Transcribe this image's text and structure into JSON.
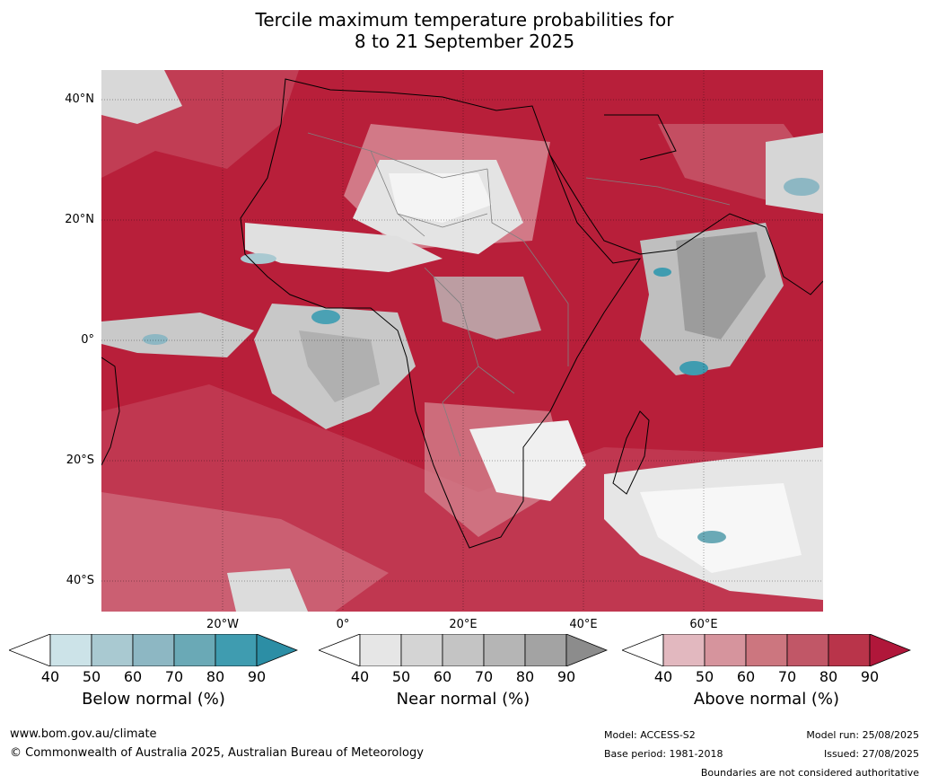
{
  "title": {
    "line1": "Tercile maximum temperature probabilities for",
    "line2": "8 to 21 September 2025"
  },
  "map": {
    "lat_labels": [
      "40°N",
      "20°N",
      "0°",
      "20°S",
      "40°S"
    ],
    "lon_labels": [
      "20°W",
      "0°",
      "20°E",
      "40°E",
      "60°E"
    ],
    "background_color": "#b81f3a"
  },
  "legends": [
    {
      "label": "Below normal (%)",
      "ticks": [
        "40",
        "50",
        "60",
        "70",
        "80",
        "90"
      ],
      "colors": [
        "#ffffff",
        "#cce3e8",
        "#a9c9d1",
        "#8db7c3",
        "#6aa9b6",
        "#3f9cb0",
        "#2c8ea5"
      ]
    },
    {
      "label": "Near normal (%)",
      "ticks": [
        "40",
        "50",
        "60",
        "70",
        "80",
        "90"
      ],
      "colors": [
        "#ffffff",
        "#e6e6e6",
        "#d4d4d4",
        "#c4c4c4",
        "#b5b5b5",
        "#a3a3a3",
        "#8c8c8c"
      ]
    },
    {
      "label": "Above normal (%)",
      "ticks": [
        "40",
        "50",
        "60",
        "70",
        "80",
        "90"
      ],
      "colors": [
        "#ffffff",
        "#e2b8bf",
        "#d6949d",
        "#cc767f",
        "#c15767",
        "#b9344a",
        "#b0173a"
      ]
    }
  ],
  "footer": {
    "website": "www.bom.gov.au/climate",
    "copyright": "© Commonwealth of Australia 2025, Australian Bureau of Meteorology",
    "model": "Model: ACCESS-S2",
    "base_period": "Base period: 1981-2018",
    "model_run": "Model run: 25/08/2025",
    "issued": "Issued: 27/08/2025",
    "disclaimer": "Boundaries are not considered authoritative"
  }
}
